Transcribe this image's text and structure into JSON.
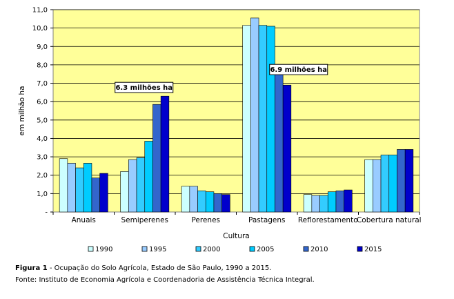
{
  "chart_data": {
    "type": "bar",
    "ylabel": "em milhão ha",
    "xlabel": "Cultura",
    "ylim": [
      0,
      11
    ],
    "yticks": [
      "-",
      "1,0",
      "2,0",
      "3,0",
      "4,0",
      "5,0",
      "6,0",
      "7,0",
      "8,0",
      "9,0",
      "10,0",
      "11,0"
    ],
    "grid": true,
    "legend_position": "bottom",
    "categories": [
      "Anuais",
      "Semiperenes",
      "Perenes",
      "Pastagens",
      "Reflorestamento",
      "Cobertura natural"
    ],
    "series": [
      {
        "name": "1990",
        "color": "#ccffff",
        "values": [
          2.9,
          2.2,
          1.4,
          10.15,
          0.95,
          2.85
        ]
      },
      {
        "name": "1995",
        "color": "#99ccff",
        "values": [
          2.65,
          2.85,
          1.4,
          10.55,
          0.9,
          2.85
        ]
      },
      {
        "name": "2000",
        "color": "#33ccff",
        "values": [
          2.4,
          2.95,
          1.15,
          10.15,
          0.9,
          3.1
        ]
      },
      {
        "name": "2005",
        "color": "#00ccff",
        "values": [
          2.65,
          3.85,
          1.1,
          10.1,
          1.1,
          3.1
        ]
      },
      {
        "name": "2010",
        "color": "#3366cc",
        "values": [
          1.85,
          5.85,
          1.0,
          7.85,
          1.15,
          3.4
        ]
      },
      {
        "name": "2015",
        "color": "#0000cc",
        "values": [
          2.1,
          6.3,
          0.95,
          6.9,
          1.2,
          3.4
        ]
      }
    ],
    "annotations": [
      {
        "text": "6.3 milhões ha",
        "category_index": 1,
        "value": 6.3
      },
      {
        "text": "6.9 milhões ha",
        "category_index": 3,
        "value": 6.9
      }
    ]
  },
  "caption": {
    "figure_label": "Figura 1",
    "figure_text": " - Ocupação do Solo Agrícola, Estado de São Paulo, 1990 a 2015.",
    "source": "Fonte: Instituto de Economia Agrícola e Coordenadoria de Assistência Técnica Integral."
  },
  "colors": {
    "plot_background": "#ffff99",
    "plot_border": "#808080",
    "bar_border": "#000000"
  }
}
